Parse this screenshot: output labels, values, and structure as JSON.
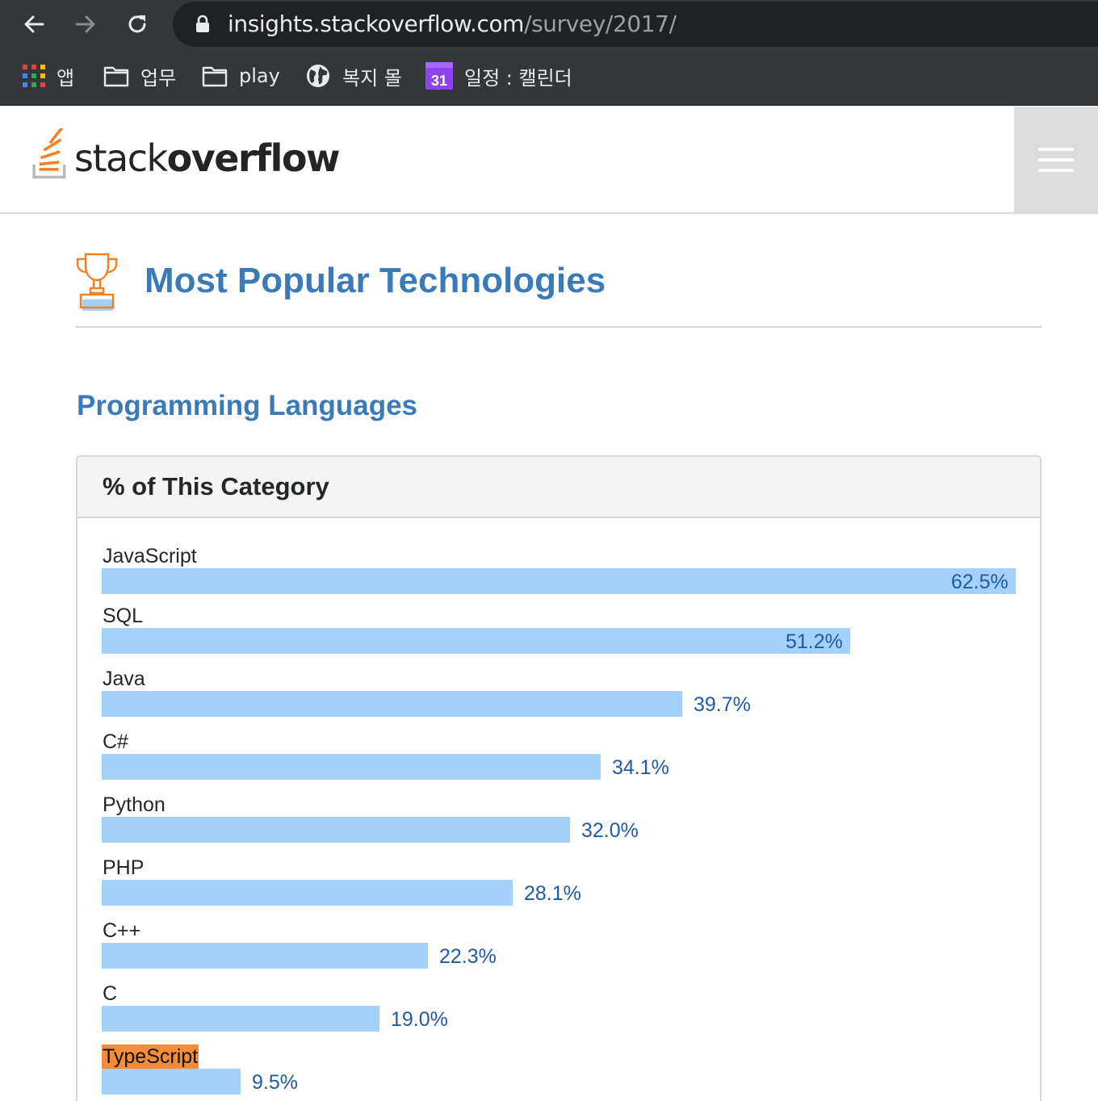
{
  "browser": {
    "url_host": "insights.stackoverflow.com",
    "url_path": "/survey/2017/",
    "bookmarks": [
      {
        "label": "앱",
        "icon": "apps-grid-icon"
      },
      {
        "label": "업무",
        "icon": "folder-icon"
      },
      {
        "label": "play",
        "icon": "folder-icon"
      },
      {
        "label": "복지 몰",
        "icon": "globe-icon"
      },
      {
        "label": "일정 : 캘린더",
        "icon": "calendar-icon",
        "icon_text": "31"
      }
    ]
  },
  "site": {
    "logo_light": "stack",
    "logo_bold": "overflow",
    "accent": "#f48024",
    "title_color": "#3b7ab8",
    "bar_color": "#a4d1f9",
    "highlight_color": "#f48c3a"
  },
  "page": {
    "title": "Most Popular Technologies",
    "subtitle": "Programming Languages",
    "panel_title": "% of This Category"
  },
  "chart_data": {
    "type": "bar",
    "orientation": "horizontal",
    "categories": [
      "JavaScript",
      "SQL",
      "Java",
      "C#",
      "Python",
      "PHP",
      "C++",
      "C",
      "TypeScript"
    ],
    "values": [
      62.5,
      51.2,
      39.7,
      34.1,
      32.0,
      28.1,
      22.3,
      19.0,
      9.5
    ],
    "value_labels": [
      "62.5%",
      "51.2%",
      "39.7%",
      "34.1%",
      "32.0%",
      "28.1%",
      "22.3%",
      "19.0%",
      "9.5%"
    ],
    "highlighted_category": "TypeScript",
    "title": "% of This Category"
  }
}
